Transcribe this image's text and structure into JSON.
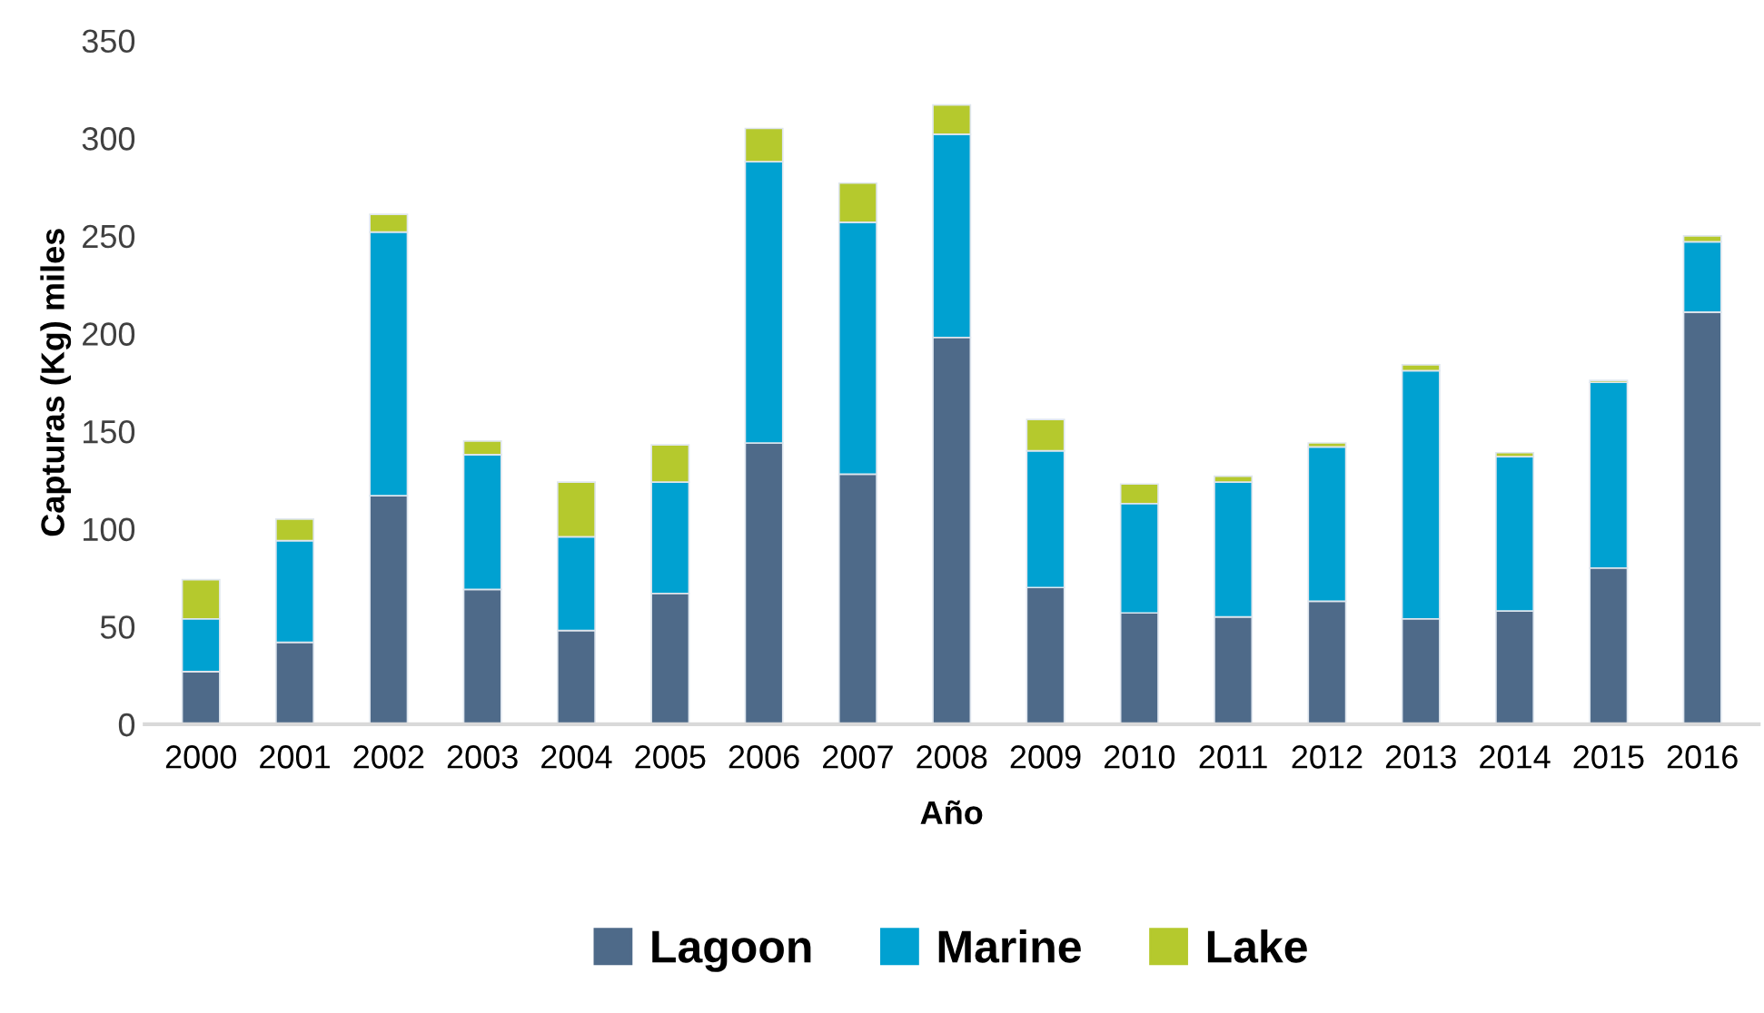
{
  "chart_data": {
    "type": "bar",
    "stacked": true,
    "xlabel": "Año",
    "ylabel": "Capturas (Kg) miles",
    "categories": [
      "2000",
      "2001",
      "2002",
      "2003",
      "2004",
      "2005",
      "2006",
      "2007",
      "2008",
      "2009",
      "2010",
      "2011",
      "2012",
      "2013",
      "2014",
      "2015",
      "2016"
    ],
    "series": [
      {
        "name": "Lagoon",
        "color": "#4e6a89",
        "values": [
          27,
          42,
          117,
          69,
          48,
          67,
          144,
          128,
          198,
          70,
          57,
          55,
          63,
          54,
          58,
          80,
          211
        ]
      },
      {
        "name": "Marine",
        "color": "#00a1d1",
        "values": [
          27,
          52,
          135,
          69,
          48,
          57,
          144,
          129,
          104,
          70,
          56,
          69,
          79,
          127,
          79,
          95,
          36
        ]
      },
      {
        "name": "Lake",
        "color": "#b5c92d",
        "values": [
          20,
          11,
          9,
          7,
          28,
          19,
          17,
          20,
          15,
          16,
          10,
          3,
          2,
          3,
          2,
          1,
          3
        ]
      }
    ],
    "ylim": [
      0,
      350
    ],
    "yticks": [
      0,
      50,
      100,
      150,
      200,
      250,
      300,
      350
    ],
    "grid": false,
    "legend": "bottom"
  }
}
